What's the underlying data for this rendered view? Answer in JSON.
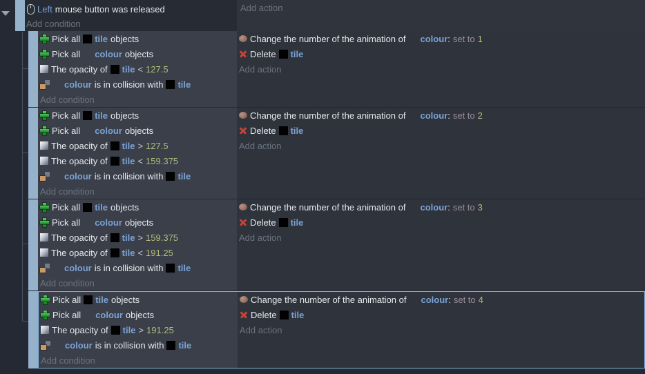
{
  "colors": {
    "page_bg": "#242933",
    "cond_bg_sub": "#3a3f49",
    "act_bg_sub": "#2e333c",
    "cond_bg_root": "#262b34",
    "act_bg_root": "#2f343d",
    "drag_handle": "#96b1ca",
    "selection_border": "#7fb2d9",
    "object_name": "#7ba3d6",
    "value_text": "#b6bc7b",
    "set_to_text": "#9d8f9b",
    "add_link": "#6b7480",
    "delete_icon": "#cb4236",
    "pick_icon": "#2aa338"
  },
  "ui": {
    "add_condition": "Add condition",
    "add_action": "Add action"
  },
  "root": {
    "condition": {
      "icon": "mouse",
      "tokens": [
        [
          "param",
          "Left"
        ],
        [
          "w",
          "mouse button was released"
        ]
      ]
    }
  },
  "blocks": [
    {
      "selected": false,
      "conditions": [
        {
          "icon": "pick",
          "tokens": [
            [
              "w",
              "Pick all"
            ],
            [
              "thumb"
            ],
            [
              "obj",
              "tile"
            ],
            [
              "w",
              "objects"
            ]
          ]
        },
        {
          "icon": "pick",
          "tokens": [
            [
              "w",
              "Pick all"
            ],
            [
              "blank"
            ],
            [
              "obj",
              "colour"
            ],
            [
              "w",
              "objects"
            ]
          ]
        },
        {
          "icon": "opacity",
          "tokens": [
            [
              "w",
              "The opacity of"
            ],
            [
              "thumb"
            ],
            [
              "obj",
              "tile"
            ],
            [
              "op",
              "<"
            ],
            [
              "val",
              "127.5"
            ]
          ]
        },
        {
          "icon": "collision",
          "tokens": [
            [
              "blank"
            ],
            [
              "obj",
              "colour"
            ],
            [
              "w",
              "is in collision with"
            ],
            [
              "thumb"
            ],
            [
              "obj",
              "tile"
            ]
          ]
        }
      ],
      "actions": [
        {
          "icon": "anim",
          "tokens": [
            [
              "w",
              "Change the number of the animation of"
            ],
            [
              "blank"
            ],
            [
              "obj",
              "colour"
            ],
            [
              "glue",
              ":"
            ],
            [
              "setto",
              "set to"
            ],
            [
              "val",
              "1"
            ]
          ]
        },
        {
          "icon": "del",
          "tokens": [
            [
              "w",
              "Delete"
            ],
            [
              "thumb"
            ],
            [
              "obj",
              "tile"
            ]
          ]
        }
      ]
    },
    {
      "selected": false,
      "conditions": [
        {
          "icon": "pick",
          "tokens": [
            [
              "w",
              "Pick all"
            ],
            [
              "thumb"
            ],
            [
              "obj",
              "tile"
            ],
            [
              "w",
              "objects"
            ]
          ]
        },
        {
          "icon": "pick",
          "tokens": [
            [
              "w",
              "Pick all"
            ],
            [
              "blank"
            ],
            [
              "obj",
              "colour"
            ],
            [
              "w",
              "objects"
            ]
          ]
        },
        {
          "icon": "opacity",
          "tokens": [
            [
              "w",
              "The opacity of"
            ],
            [
              "thumb"
            ],
            [
              "obj",
              "tile"
            ],
            [
              "op",
              ">"
            ],
            [
              "val",
              "127.5"
            ]
          ]
        },
        {
          "icon": "opacity",
          "tokens": [
            [
              "w",
              "The opacity of"
            ],
            [
              "thumb"
            ],
            [
              "obj",
              "tile"
            ],
            [
              "op",
              "<"
            ],
            [
              "val",
              "159.375"
            ]
          ]
        },
        {
          "icon": "collision",
          "tokens": [
            [
              "blank"
            ],
            [
              "obj",
              "colour"
            ],
            [
              "w",
              "is in collision with"
            ],
            [
              "thumb"
            ],
            [
              "obj",
              "tile"
            ]
          ]
        }
      ],
      "actions": [
        {
          "icon": "anim",
          "tokens": [
            [
              "w",
              "Change the number of the animation of"
            ],
            [
              "blank"
            ],
            [
              "obj",
              "colour"
            ],
            [
              "glue",
              ":"
            ],
            [
              "setto",
              "set to"
            ],
            [
              "val",
              "2"
            ]
          ]
        },
        {
          "icon": "del",
          "tokens": [
            [
              "w",
              "Delete"
            ],
            [
              "thumb"
            ],
            [
              "obj",
              "tile"
            ]
          ]
        }
      ]
    },
    {
      "selected": false,
      "conditions": [
        {
          "icon": "pick",
          "tokens": [
            [
              "w",
              "Pick all"
            ],
            [
              "thumb"
            ],
            [
              "obj",
              "tile"
            ],
            [
              "w",
              "objects"
            ]
          ]
        },
        {
          "icon": "pick",
          "tokens": [
            [
              "w",
              "Pick all"
            ],
            [
              "blank"
            ],
            [
              "obj",
              "colour"
            ],
            [
              "w",
              "objects"
            ]
          ]
        },
        {
          "icon": "opacity",
          "tokens": [
            [
              "w",
              "The opacity of"
            ],
            [
              "thumb"
            ],
            [
              "obj",
              "tile"
            ],
            [
              "op",
              ">"
            ],
            [
              "val",
              "159.375"
            ]
          ]
        },
        {
          "icon": "opacity",
          "tokens": [
            [
              "w",
              "The opacity of"
            ],
            [
              "thumb"
            ],
            [
              "obj",
              "tile"
            ],
            [
              "op",
              "<"
            ],
            [
              "val",
              "191.25"
            ]
          ]
        },
        {
          "icon": "collision",
          "tokens": [
            [
              "blank"
            ],
            [
              "obj",
              "colour"
            ],
            [
              "w",
              "is in collision with"
            ],
            [
              "thumb"
            ],
            [
              "obj",
              "tile"
            ]
          ]
        }
      ],
      "actions": [
        {
          "icon": "anim",
          "tokens": [
            [
              "w",
              "Change the number of the animation of"
            ],
            [
              "blank"
            ],
            [
              "obj",
              "colour"
            ],
            [
              "glue",
              ":"
            ],
            [
              "setto",
              "set to"
            ],
            [
              "val",
              "3"
            ]
          ]
        },
        {
          "icon": "del",
          "tokens": [
            [
              "w",
              "Delete"
            ],
            [
              "thumb"
            ],
            [
              "obj",
              "tile"
            ]
          ]
        }
      ]
    },
    {
      "selected": true,
      "conditions": [
        {
          "icon": "pick",
          "tokens": [
            [
              "w",
              "Pick all"
            ],
            [
              "thumb"
            ],
            [
              "obj",
              "tile"
            ],
            [
              "w",
              "objects"
            ]
          ]
        },
        {
          "icon": "pick",
          "tokens": [
            [
              "w",
              "Pick all"
            ],
            [
              "blank"
            ],
            [
              "obj",
              "colour"
            ],
            [
              "w",
              "objects"
            ]
          ]
        },
        {
          "icon": "opacity",
          "tokens": [
            [
              "w",
              "The opacity of"
            ],
            [
              "thumb"
            ],
            [
              "obj",
              "tile"
            ],
            [
              "op",
              ">"
            ],
            [
              "val",
              "191.25"
            ]
          ]
        },
        {
          "icon": "collision",
          "tokens": [
            [
              "blank"
            ],
            [
              "obj",
              "colour"
            ],
            [
              "w",
              "is in collision with"
            ],
            [
              "thumb"
            ],
            [
              "obj",
              "tile"
            ]
          ]
        }
      ],
      "actions": [
        {
          "icon": "anim",
          "tokens": [
            [
              "w",
              "Change the number of the animation of"
            ],
            [
              "blank"
            ],
            [
              "obj",
              "colour"
            ],
            [
              "glue",
              ":"
            ],
            [
              "setto",
              "set to"
            ],
            [
              "val",
              "4"
            ]
          ]
        },
        {
          "icon": "del",
          "tokens": [
            [
              "w",
              "Delete"
            ],
            [
              "thumb"
            ],
            [
              "obj",
              "tile"
            ]
          ]
        }
      ]
    }
  ]
}
